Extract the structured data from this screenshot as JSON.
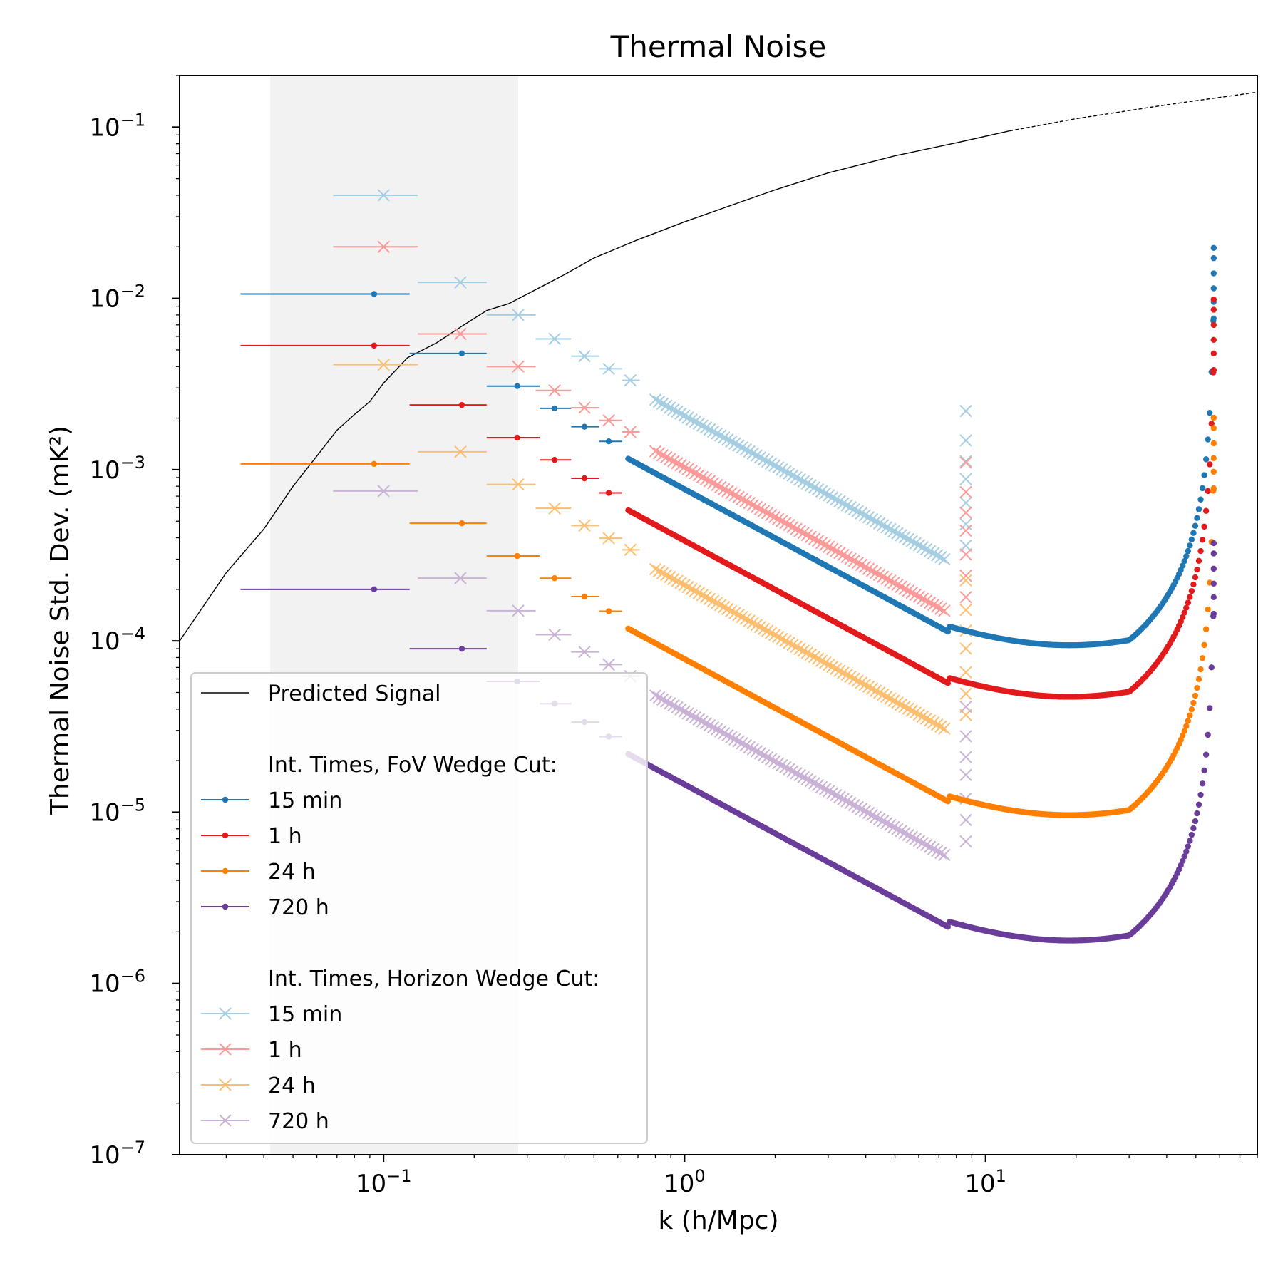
{
  "chart_data": {
    "type": "line",
    "title": "Thermal Noise",
    "xlabel": "k (h/Mpc)",
    "ylabel": "Thermal Noise Std. Dev. (mK²)",
    "xscale": "log",
    "yscale": "log",
    "xlim": [
      0.021,
      80
    ],
    "ylim": [
      1e-07,
      0.2
    ],
    "grid": false,
    "legend_position": "lower-left",
    "shaded_region": {
      "x": [
        0.042,
        0.28
      ],
      "color": "#f2f2f2"
    },
    "x_ticks": [
      {
        "base": "10",
        "exp": "−1",
        "value": 0.1
      },
      {
        "base": "10",
        "exp": "0",
        "value": 1
      },
      {
        "base": "10",
        "exp": "1",
        "value": 10
      }
    ],
    "y_ticks": [
      {
        "base": "10",
        "exp": "−1",
        "value": 0.1
      },
      {
        "base": "10",
        "exp": "−2",
        "value": 0.01
      },
      {
        "base": "10",
        "exp": "−3",
        "value": 0.001
      },
      {
        "base": "10",
        "exp": "−4",
        "value": 0.0001
      },
      {
        "base": "10",
        "exp": "−5",
        "value": 1e-05
      },
      {
        "base": "10",
        "exp": "−6",
        "value": 1e-06
      },
      {
        "base": "10",
        "exp": "−7",
        "value": 1e-07
      }
    ],
    "signal": {
      "name": "Predicted Signal",
      "color": "#000000",
      "solid_until": 12,
      "x": [
        0.021,
        0.03,
        0.04,
        0.05,
        0.06,
        0.07,
        0.08,
        0.09,
        0.1,
        0.12,
        0.15,
        0.18,
        0.22,
        0.26,
        0.3,
        0.35,
        0.4,
        0.5,
        0.7,
        1.0,
        1.5,
        2,
        3,
        5,
        8,
        12,
        20,
        40,
        80
      ],
      "y": [
        0.0001,
        0.00025,
        0.00045,
        0.0008,
        0.0012,
        0.0017,
        0.0021,
        0.0025,
        0.0032,
        0.0045,
        0.0055,
        0.0068,
        0.0085,
        0.0093,
        0.0106,
        0.0122,
        0.0138,
        0.0172,
        0.022,
        0.028,
        0.036,
        0.043,
        0.054,
        0.068,
        0.081,
        0.095,
        0.112,
        0.135,
        0.16
      ]
    },
    "legend_headers": {
      "fov": "Int. Times, FoV Wedge Cut:",
      "horizon": "Int. Times, Horizon Wedge Cut:"
    },
    "fov_series": [
      {
        "name": "15 min",
        "color": "#1f77b4",
        "base": 0.0106
      },
      {
        "name": "1 h",
        "color": "#e31a1c",
        "base": 0.0053
      },
      {
        "name": "24 h",
        "color": "#ff7f00",
        "base": 0.00108
      },
      {
        "name": "720 h",
        "color": "#6a3d9a",
        "base": 0.0002
      }
    ],
    "horizon_series": [
      {
        "name": "15 min",
        "color": "#a6cee3",
        "base": 0.04
      },
      {
        "name": "1 h",
        "color": "#fb9a99",
        "base": 0.02
      },
      {
        "name": "24 h",
        "color": "#fdbf6f",
        "base": 0.0041
      },
      {
        "name": "720 h",
        "color": "#cab2d6",
        "base": 0.00075
      }
    ]
  }
}
